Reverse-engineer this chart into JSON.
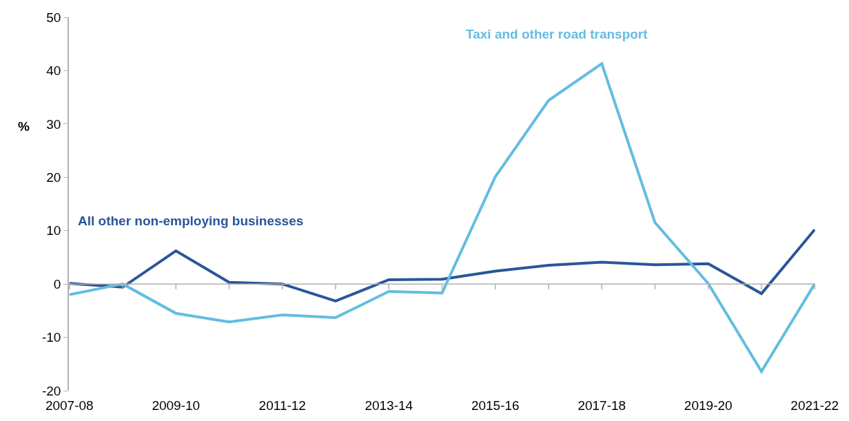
{
  "chart_data": {
    "type": "line",
    "categories": [
      "2007-08",
      null,
      "2009-10",
      null,
      "2011-12",
      null,
      "2013-14",
      null,
      "2015-16",
      null,
      "2017-18",
      null,
      "2019-20",
      null,
      "2021-22"
    ],
    "ylabel": "%",
    "ylim": [
      -20,
      50
    ],
    "yticks": [
      -20,
      -10,
      0,
      10,
      20,
      30,
      40,
      50
    ],
    "ref_lines": [
      {
        "axis": "y",
        "value": 0,
        "color": "#b0b0b0"
      }
    ],
    "legend": false,
    "marker": "none",
    "line_style": "solid",
    "series": [
      {
        "name": "All other non-employing businesses",
        "color": "#2a5699",
        "values": [
          0.1,
          -0.6,
          6.2,
          0.3,
          0.0,
          -3.2,
          0.8,
          0.9,
          2.4,
          3.5,
          4.1,
          3.6,
          3.8,
          -1.8,
          10.2
        ]
      },
      {
        "name": "Taxi and other road transport",
        "color": "#63bde0",
        "values": [
          -2.0,
          0.0,
          -5.5,
          -7.1,
          -5.8,
          -6.3,
          -1.4,
          -1.7,
          20.1,
          34.4,
          41.3,
          11.5,
          0.1,
          -16.4,
          0.0
        ]
      }
    ]
  }
}
